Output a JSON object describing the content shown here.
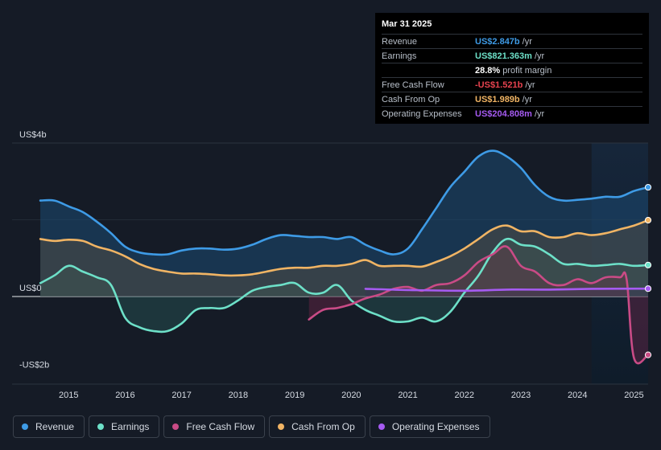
{
  "tooltip": {
    "date": "Mar 31 2025",
    "rows": [
      {
        "label": "Revenue",
        "value": "US$2.847b",
        "unit": "/yr",
        "color": "#3e9be6"
      },
      {
        "label": "Earnings",
        "value": "US$821.363m",
        "unit": "/yr",
        "color": "#6de0c8"
      },
      {
        "label": "",
        "value": "28.8%",
        "unit": "profit margin",
        "color": "#ffffff"
      },
      {
        "label": "Free Cash Flow",
        "value": "-US$1.521b",
        "unit": "/yr",
        "color": "#e8434f"
      },
      {
        "label": "Cash From Op",
        "value": "US$1.989b",
        "unit": "/yr",
        "color": "#f0b464"
      },
      {
        "label": "Operating Expenses",
        "value": "US$204.808m",
        "unit": "/yr",
        "color": "#a65bf2"
      }
    ]
  },
  "legend": [
    {
      "label": "Revenue",
      "color": "#3e9be6"
    },
    {
      "label": "Earnings",
      "color": "#6de0c8"
    },
    {
      "label": "Free Cash Flow",
      "color": "#c94b86"
    },
    {
      "label": "Cash From Op",
      "color": "#f0b464"
    },
    {
      "label": "Operating Expenses",
      "color": "#a65bf2"
    }
  ],
  "chart_data": {
    "type": "area",
    "title": "",
    "xlabel": "",
    "ylabel": "",
    "y_tick_labels": [
      "US$4b",
      "US$0",
      "-US$2b"
    ],
    "y_ticks": [
      4,
      0,
      -2
    ],
    "ylim": [
      -2,
      4
    ],
    "xlim": [
      2014.0,
      2025.25
    ],
    "x_ticks": [
      "2015",
      "2016",
      "2017",
      "2018",
      "2019",
      "2020",
      "2021",
      "2022",
      "2023",
      "2024",
      "2025"
    ],
    "highlight_from": 2024.25,
    "series": [
      {
        "name": "Revenue",
        "color": "#3e9be6",
        "x": [
          2014.5,
          2014.75,
          2015.0,
          2015.25,
          2015.5,
          2015.75,
          2016.0,
          2016.25,
          2016.5,
          2016.75,
          2017.0,
          2017.25,
          2017.5,
          2017.75,
          2018.0,
          2018.25,
          2018.5,
          2018.75,
          2019.0,
          2019.25,
          2019.5,
          2019.75,
          2020.0,
          2020.25,
          2020.5,
          2020.75,
          2021.0,
          2021.25,
          2021.5,
          2021.75,
          2022.0,
          2022.25,
          2022.5,
          2022.75,
          2023.0,
          2023.25,
          2023.5,
          2023.75,
          2024.0,
          2024.25,
          2024.5,
          2024.75,
          2025.0,
          2025.25
        ],
        "y": [
          2.5,
          2.5,
          2.35,
          2.2,
          1.95,
          1.65,
          1.3,
          1.15,
          1.1,
          1.1,
          1.2,
          1.25,
          1.25,
          1.22,
          1.25,
          1.35,
          1.5,
          1.6,
          1.58,
          1.55,
          1.55,
          1.5,
          1.55,
          1.35,
          1.2,
          1.1,
          1.25,
          1.75,
          2.3,
          2.85,
          3.25,
          3.65,
          3.8,
          3.65,
          3.35,
          2.9,
          2.6,
          2.5,
          2.52,
          2.55,
          2.6,
          2.6,
          2.75,
          2.847
        ]
      },
      {
        "name": "Earnings",
        "color": "#6de0c8",
        "x": [
          2014.5,
          2014.75,
          2015.0,
          2015.25,
          2015.5,
          2015.75,
          2016.0,
          2016.25,
          2016.5,
          2016.75,
          2017.0,
          2017.25,
          2017.5,
          2017.75,
          2018.0,
          2018.25,
          2018.5,
          2018.75,
          2019.0,
          2019.25,
          2019.5,
          2019.75,
          2020.0,
          2020.25,
          2020.5,
          2020.75,
          2021.0,
          2021.25,
          2021.5,
          2021.75,
          2022.0,
          2022.25,
          2022.5,
          2022.75,
          2023.0,
          2023.25,
          2023.5,
          2023.75,
          2024.0,
          2024.25,
          2024.5,
          2024.75,
          2025.0,
          2025.25
        ],
        "y": [
          0.35,
          0.55,
          0.8,
          0.65,
          0.5,
          0.3,
          -0.55,
          -0.8,
          -0.9,
          -0.9,
          -0.7,
          -0.35,
          -0.3,
          -0.3,
          -0.1,
          0.15,
          0.25,
          0.3,
          0.35,
          0.1,
          0.1,
          0.3,
          -0.1,
          -0.35,
          -0.5,
          -0.65,
          -0.65,
          -0.55,
          -0.65,
          -0.4,
          0.1,
          0.55,
          1.15,
          1.5,
          1.35,
          1.3,
          1.1,
          0.85,
          0.85,
          0.8,
          0.82,
          0.85,
          0.8,
          0.821
        ]
      },
      {
        "name": "Free Cash Flow",
        "color": "#c94b86",
        "x": [
          2019.25,
          2019.5,
          2019.75,
          2020.0,
          2020.25,
          2020.5,
          2020.75,
          2021.0,
          2021.25,
          2021.5,
          2021.75,
          2022.0,
          2022.25,
          2022.5,
          2022.75,
          2023.0,
          2023.25,
          2023.5,
          2023.75,
          2024.0,
          2024.25,
          2024.5,
          2024.75,
          2024.87,
          2025.0,
          2025.25
        ],
        "y": [
          -0.6,
          -0.35,
          -0.3,
          -0.2,
          -0.05,
          0.05,
          0.2,
          0.25,
          0.15,
          0.3,
          0.35,
          0.55,
          0.9,
          1.1,
          1.3,
          0.8,
          0.65,
          0.35,
          0.3,
          0.45,
          0.35,
          0.5,
          0.5,
          0.45,
          -1.6,
          -1.521
        ]
      },
      {
        "name": "Cash From Op",
        "color": "#f0b464",
        "x": [
          2014.5,
          2014.75,
          2015.0,
          2015.25,
          2015.5,
          2015.75,
          2016.0,
          2016.25,
          2016.5,
          2016.75,
          2017.0,
          2017.25,
          2017.5,
          2017.75,
          2018.0,
          2018.25,
          2018.5,
          2018.75,
          2019.0,
          2019.25,
          2019.5,
          2019.75,
          2020.0,
          2020.25,
          2020.5,
          2020.75,
          2021.0,
          2021.25,
          2021.5,
          2021.75,
          2022.0,
          2022.25,
          2022.5,
          2022.75,
          2023.0,
          2023.25,
          2023.5,
          2023.75,
          2024.0,
          2024.25,
          2024.5,
          2024.75,
          2025.0,
          2025.25
        ],
        "y": [
          1.5,
          1.45,
          1.48,
          1.45,
          1.3,
          1.2,
          1.05,
          0.85,
          0.72,
          0.65,
          0.6,
          0.6,
          0.58,
          0.55,
          0.55,
          0.58,
          0.65,
          0.72,
          0.75,
          0.75,
          0.8,
          0.8,
          0.85,
          0.95,
          0.8,
          0.8,
          0.8,
          0.78,
          0.9,
          1.05,
          1.25,
          1.5,
          1.75,
          1.85,
          1.7,
          1.7,
          1.55,
          1.55,
          1.65,
          1.6,
          1.65,
          1.75,
          1.85,
          1.989
        ]
      },
      {
        "name": "Operating Expenses",
        "color": "#a65bf2",
        "x": [
          2020.25,
          2021.0,
          2022.0,
          2022.75,
          2023.5,
          2024.25,
          2025.25
        ],
        "y": [
          0.2,
          0.17,
          0.15,
          0.18,
          0.18,
          0.2,
          0.205
        ]
      }
    ]
  }
}
